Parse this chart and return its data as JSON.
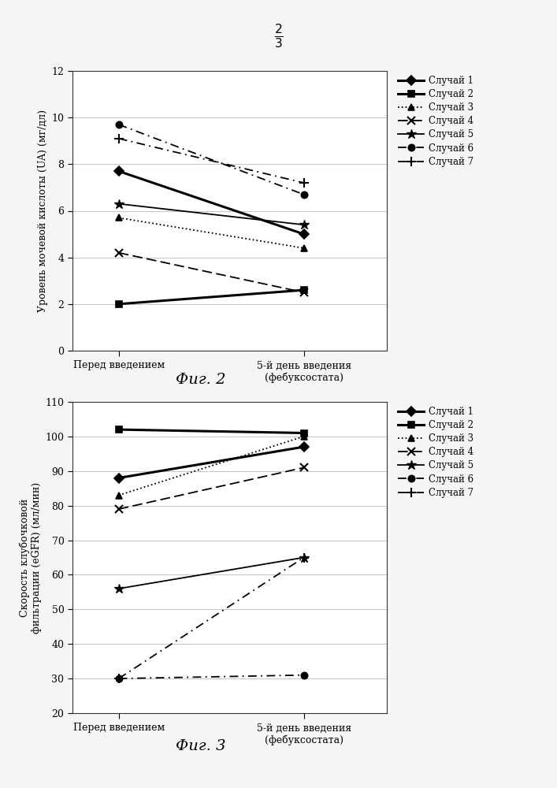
{
  "page_label": "2/3",
  "fig2": {
    "title": "Фиг. 2",
    "ylabel": "Уровень мочевой кислоты (UA) (мг/дл)",
    "xlabel_before": "Перед введением",
    "xlabel_after": "5-й день введения\n(фебуксостата)",
    "ylim": [
      0,
      12
    ],
    "yticks": [
      0,
      2,
      4,
      6,
      8,
      10,
      12
    ],
    "series": [
      {
        "label": "Случай 1",
        "before": 7.7,
        "after": 5.0
      },
      {
        "label": "Случай 2",
        "before": 2.0,
        "after": 2.6
      },
      {
        "label": "Случай 3",
        "before": 5.7,
        "after": 4.4
      },
      {
        "label": "Случай 4",
        "before": 4.2,
        "after": 2.5
      },
      {
        "label": "Случай 5",
        "before": 6.3,
        "after": 5.4
      },
      {
        "label": "Случай 6",
        "before": 9.7,
        "after": 6.7
      },
      {
        "label": "Случай 7",
        "before": 9.1,
        "after": 7.2
      }
    ]
  },
  "fig3": {
    "title": "Фиг. 3",
    "ylabel": "Скорость клубочковой\nфильтрации (eGFR) (мл/мин)",
    "xlabel_before": "Перед введением",
    "xlabel_after": "5-й день введения\n(фебуксостата)",
    "ylim": [
      20,
      110
    ],
    "yticks": [
      20,
      30,
      40,
      50,
      60,
      70,
      80,
      90,
      100,
      110
    ],
    "series": [
      {
        "label": "Случай 1",
        "before": 88,
        "after": 97
      },
      {
        "label": "Случай 2",
        "before": 102,
        "after": 101
      },
      {
        "label": "Случай 3",
        "before": 83,
        "after": 100
      },
      {
        "label": "Случай 4",
        "before": 79,
        "after": 91
      },
      {
        "label": "Случай 5",
        "before": 56,
        "after": 65
      },
      {
        "label": "Случай 6",
        "before": 30,
        "after": 31
      },
      {
        "label": "Случай 7",
        "before": 30,
        "after": 65
      }
    ]
  },
  "background_color": "#f5f5f5",
  "x_positions": [
    0,
    1
  ],
  "xlim": [
    -0.25,
    1.45
  ]
}
